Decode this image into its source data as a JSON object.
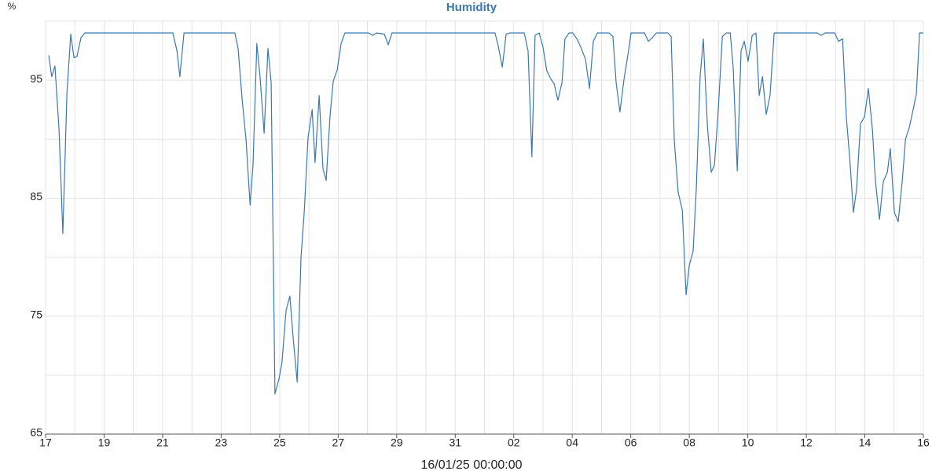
{
  "chart_data": {
    "type": "line",
    "title": "Humidity",
    "y_unit": "%",
    "x_label": "16/01/25 00:00:00",
    "xlim": [
      0,
      30
    ],
    "ylim": [
      65,
      100
    ],
    "xticks": [
      {
        "value": 0,
        "label": "17"
      },
      {
        "value": 2,
        "label": "19"
      },
      {
        "value": 4,
        "label": "21"
      },
      {
        "value": 6,
        "label": "23"
      },
      {
        "value": 8,
        "label": "25"
      },
      {
        "value": 10,
        "label": "27"
      },
      {
        "value": 12,
        "label": "29"
      },
      {
        "value": 14,
        "label": "31"
      },
      {
        "value": 16,
        "label": "02"
      },
      {
        "value": 18,
        "label": "04"
      },
      {
        "value": 20,
        "label": "06"
      },
      {
        "value": 22,
        "label": "08"
      },
      {
        "value": 24,
        "label": "10"
      },
      {
        "value": 26,
        "label": "12"
      },
      {
        "value": 28,
        "label": "14"
      },
      {
        "value": 30,
        "label": "16"
      }
    ],
    "minor_xticks": [
      1,
      3,
      5,
      7,
      9,
      11,
      13,
      15,
      17,
      19,
      21,
      23,
      25,
      27,
      29
    ],
    "yticks": [
      65,
      75,
      85,
      95
    ],
    "minor_yticks": [
      70,
      80,
      90,
      100
    ],
    "grid": true,
    "series": [
      {
        "name": "Humidity",
        "color": "#3b78ae",
        "x": [
          0.11,
          0.21,
          0.32,
          0.46,
          0.59,
          0.73,
          0.86,
          0.97,
          1.07,
          1.21,
          1.34,
          4.35,
          4.49,
          4.59,
          4.73,
          6.47,
          6.58,
          6.72,
          6.85,
          6.99,
          7.09,
          7.22,
          7.33,
          7.47,
          7.6,
          7.71,
          7.84,
          7.98,
          8.08,
          8.22,
          8.35,
          8.46,
          8.6,
          8.73,
          8.84,
          8.97,
          9.11,
          9.21,
          9.35,
          9.48,
          9.59,
          9.72,
          9.83,
          9.97,
          10.1,
          10.23,
          11.04,
          11.18,
          11.31,
          11.58,
          11.71,
          11.84,
          15.36,
          15.47,
          15.61,
          15.74,
          15.87,
          16.36,
          16.49,
          16.62,
          16.73,
          16.87,
          17.0,
          17.13,
          17.27,
          17.38,
          17.51,
          17.65,
          17.75,
          17.89,
          18.02,
          18.16,
          18.29,
          18.45,
          18.59,
          18.72,
          18.86,
          19.26,
          19.39,
          19.5,
          19.63,
          19.77,
          19.9,
          20.01,
          20.47,
          20.6,
          20.74,
          20.87,
          21.27,
          21.38,
          21.49,
          21.62,
          21.76,
          21.89,
          22.0,
          22.13,
          22.24,
          22.37,
          22.48,
          22.62,
          22.75,
          22.86,
          22.99,
          23.13,
          23.26,
          23.4,
          23.5,
          23.64,
          23.77,
          23.88,
          24.01,
          24.15,
          24.28,
          24.39,
          24.5,
          24.63,
          24.76,
          24.9,
          26.37,
          26.51,
          26.64,
          26.97,
          27.1,
          27.24,
          27.37,
          27.48,
          27.61,
          27.72,
          27.85,
          27.99,
          28.12,
          28.26,
          28.36,
          28.5,
          28.63,
          28.77,
          28.87,
          29.01,
          29.14,
          29.28,
          29.39,
          29.52,
          29.65,
          29.76,
          29.87,
          30.0
        ],
        "values": [
          97.1,
          95.3,
          96.2,
          90.8,
          82.0,
          93.9,
          98.9,
          96.9,
          97.0,
          98.6,
          99.0,
          99.0,
          97.5,
          95.3,
          99.0,
          99.0,
          97.7,
          93.3,
          90.0,
          84.4,
          87.8,
          98.1,
          95.3,
          90.5,
          97.7,
          94.8,
          68.4,
          69.7,
          71.1,
          75.5,
          76.7,
          73.2,
          69.4,
          80.0,
          83.8,
          90.1,
          92.5,
          88.0,
          93.7,
          87.5,
          86.5,
          91.9,
          94.9,
          95.9,
          98.1,
          99.0,
          99.0,
          98.8,
          99.0,
          98.9,
          98.0,
          99.0,
          99.0,
          97.9,
          96.1,
          98.9,
          99.0,
          99.0,
          97.5,
          88.5,
          98.8,
          99.0,
          97.8,
          95.8,
          95.1,
          94.7,
          93.3,
          94.8,
          98.5,
          99.0,
          99.0,
          98.5,
          97.8,
          96.8,
          94.3,
          98.3,
          99.0,
          99.0,
          98.7,
          94.8,
          92.3,
          95.1,
          97.1,
          99.0,
          99.0,
          98.3,
          98.6,
          99.0,
          99.0,
          98.7,
          89.8,
          85.5,
          84.0,
          76.8,
          79.3,
          80.5,
          85.8,
          95.3,
          98.5,
          91.1,
          87.2,
          87.8,
          92.5,
          98.7,
          99.0,
          99.0,
          96.1,
          87.3,
          97.5,
          98.3,
          96.6,
          98.8,
          99.0,
          93.7,
          95.3,
          92.1,
          93.7,
          99.0,
          99.0,
          98.8,
          99.0,
          99.0,
          98.3,
          98.5,
          91.8,
          88.5,
          83.8,
          85.8,
          91.3,
          91.9,
          94.3,
          90.8,
          86.5,
          83.2,
          86.4,
          87.2,
          89.2,
          83.8,
          83.0,
          86.5,
          90.0,
          91.0,
          92.5,
          93.8,
          99.0,
          99.0
        ]
      }
    ]
  }
}
